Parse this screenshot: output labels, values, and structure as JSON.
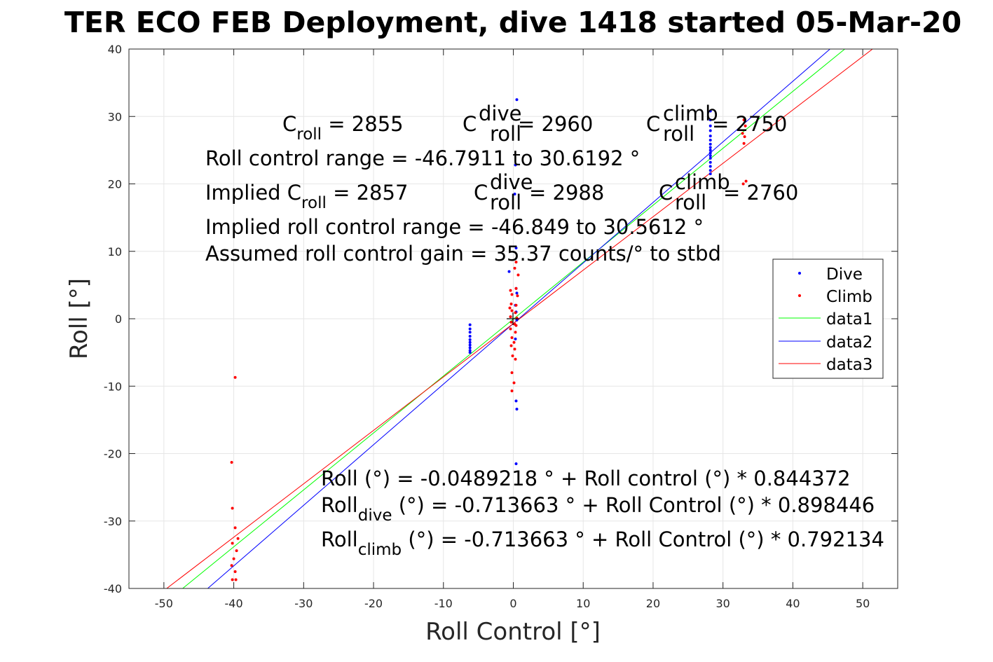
{
  "chart_data": {
    "type": "scatter",
    "title": "TER ECO FEB Deployment, dive 1418 started 05-Mar-20",
    "xlabel": "Roll Control [°]",
    "ylabel": "Roll [°]",
    "xlim": [
      -55,
      55
    ],
    "ylim": [
      -40,
      40
    ],
    "xticks": [
      -50,
      -40,
      -30,
      -20,
      -10,
      0,
      10,
      20,
      30,
      40,
      50
    ],
    "yticks": [
      -40,
      -30,
      -20,
      -10,
      0,
      10,
      20,
      30,
      40
    ],
    "grid": true,
    "legend_position": "right",
    "series": [
      {
        "name": "Dive",
        "kind": "points",
        "color": "#0000ff",
        "points": [
          [
            0.5,
            32.5
          ],
          [
            0.3,
            22.8
          ],
          [
            0.2,
            18.5
          ],
          [
            0.4,
            10.5
          ],
          [
            -0.6,
            7.0
          ],
          [
            0.4,
            4.5
          ],
          [
            0.5,
            3.8
          ],
          [
            0.3,
            2.0
          ],
          [
            0.4,
            1.0
          ],
          [
            0.5,
            -0.2
          ],
          [
            0.3,
            -3.0
          ],
          [
            0.4,
            -12.2
          ],
          [
            0.5,
            -13.4
          ],
          [
            0.4,
            -21.5
          ],
          [
            -6.2,
            -0.9
          ],
          [
            -6.2,
            -1.5
          ],
          [
            -6.2,
            -2.0
          ],
          [
            -6.2,
            -2.6
          ],
          [
            -6.2,
            -3.1
          ],
          [
            -6.2,
            -3.5
          ],
          [
            -6.2,
            -3.9
          ],
          [
            -6.2,
            -4.3
          ],
          [
            -6.2,
            -4.7
          ],
          [
            -6.2,
            -5.0
          ],
          [
            28.2,
            30.8
          ],
          [
            28.2,
            29.5
          ],
          [
            28.2,
            28.6
          ],
          [
            28.2,
            27.9
          ],
          [
            28.2,
            27.1
          ],
          [
            28.2,
            26.5
          ],
          [
            28.2,
            25.9
          ],
          [
            28.2,
            25.4
          ],
          [
            28.2,
            25.0
          ],
          [
            28.2,
            24.6
          ],
          [
            28.2,
            24.2
          ],
          [
            28.2,
            23.8
          ],
          [
            28.2,
            23.2
          ],
          [
            28.2,
            22.6
          ],
          [
            28.2,
            22.0
          ],
          [
            28.2,
            21.5
          ]
        ]
      },
      {
        "name": "Climb",
        "kind": "points",
        "color": "#ff0000",
        "points": [
          [
            0.4,
            8.4
          ],
          [
            0.2,
            7.5
          ],
          [
            0.7,
            6.5
          ],
          [
            -0.4,
            4.2
          ],
          [
            0.4,
            4.5
          ],
          [
            -0.2,
            3.6
          ],
          [
            0.6,
            3.4
          ],
          [
            -0.3,
            2.2
          ],
          [
            0.4,
            2.0
          ],
          [
            -0.2,
            1.2
          ],
          [
            0.3,
            0.9
          ],
          [
            -0.4,
            0.3
          ],
          [
            0.5,
            0.1
          ],
          [
            -0.3,
            -0.5
          ],
          [
            0.2,
            -0.8
          ],
          [
            -0.4,
            -1.5
          ],
          [
            0.3,
            -2.0
          ],
          [
            -0.2,
            -2.8
          ],
          [
            0.1,
            -3.5
          ],
          [
            -0.3,
            -4.0
          ],
          [
            0.2,
            -4.5
          ],
          [
            -0.1,
            -5.5
          ],
          [
            0.3,
            -6.0
          ],
          [
            -0.2,
            -8.0
          ],
          [
            0.1,
            -9.5
          ],
          [
            -0.2,
            -10.7
          ],
          [
            0.4,
            -1.0
          ],
          [
            -0.5,
            1.6
          ],
          [
            -39.8,
            -8.7
          ],
          [
            -40.3,
            -21.3
          ],
          [
            -40.2,
            -28.1
          ],
          [
            -39.8,
            -31.0
          ],
          [
            -39.4,
            -32.6
          ],
          [
            -40.2,
            -33.3
          ],
          [
            -39.6,
            -34.4
          ],
          [
            -40.0,
            -35.6
          ],
          [
            -40.3,
            -36.6
          ],
          [
            -39.8,
            -37.5
          ],
          [
            -40.2,
            -38.7
          ],
          [
            -39.7,
            -38.7
          ],
          [
            33.0,
            29.5
          ],
          [
            33.2,
            28.6
          ],
          [
            32.8,
            27.5
          ],
          [
            33.1,
            27.0
          ],
          [
            33.0,
            26.0
          ],
          [
            32.9,
            20.0
          ],
          [
            33.3,
            20.4
          ]
        ]
      },
      {
        "name": "data1",
        "kind": "line",
        "color": "#00ff00",
        "x": [
          -60,
          60
        ],
        "y": [
          -50.7112,
          50.6134
        ]
      },
      {
        "name": "data2",
        "kind": "line",
        "color": "#0000ff",
        "x": [
          -60,
          60
        ],
        "y": [
          -54.6204,
          53.1931
        ]
      },
      {
        "name": "data3",
        "kind": "line",
        "color": "#ff0000",
        "x": [
          -60,
          60
        ],
        "y": [
          -48.2417,
          46.8144
        ]
      }
    ],
    "annotations": {
      "line1": {
        "c_roll_label": "C",
        "c_roll_sub": "roll",
        "c_roll_value": " = 2855",
        "dive_label": "C",
        "dive_sup": "dive",
        "dive_sub": "roll",
        "dive_value": " = 2960",
        "climb_label": "C",
        "climb_sup": "climb",
        "climb_sub": "roll",
        "climb_value": " = 2750"
      },
      "line2": "Roll control range = -46.7911 to 30.6192 °",
      "line3": {
        "c_roll_label": "Implied C",
        "c_roll_sub": "roll",
        "c_roll_value": " = 2857",
        "dive_label": "C",
        "dive_sup": "dive",
        "dive_sub": "roll",
        "dive_value": " = 2988",
        "climb_label": "C",
        "climb_sup": "climb",
        "climb_sub": "roll",
        "climb_value": " = 2760"
      },
      "line4": "Implied roll control range = -46.849 to 30.5612 °",
      "line5": "Assumed roll control gain = 35.37 counts/° to stbd",
      "eq1": "Roll (°) = -0.0489218 ° + Roll control (°) * 0.844372",
      "eq2": {
        "label": "Roll",
        "sub": "dive",
        "rest": " (°) = -0.713663 ° + Roll Control (°) * 0.898446"
      },
      "eq3": {
        "label": "Roll",
        "sub": "climb",
        "rest": " (°) = -0.713663 ° + Roll Control (°) * 0.792134"
      }
    }
  }
}
